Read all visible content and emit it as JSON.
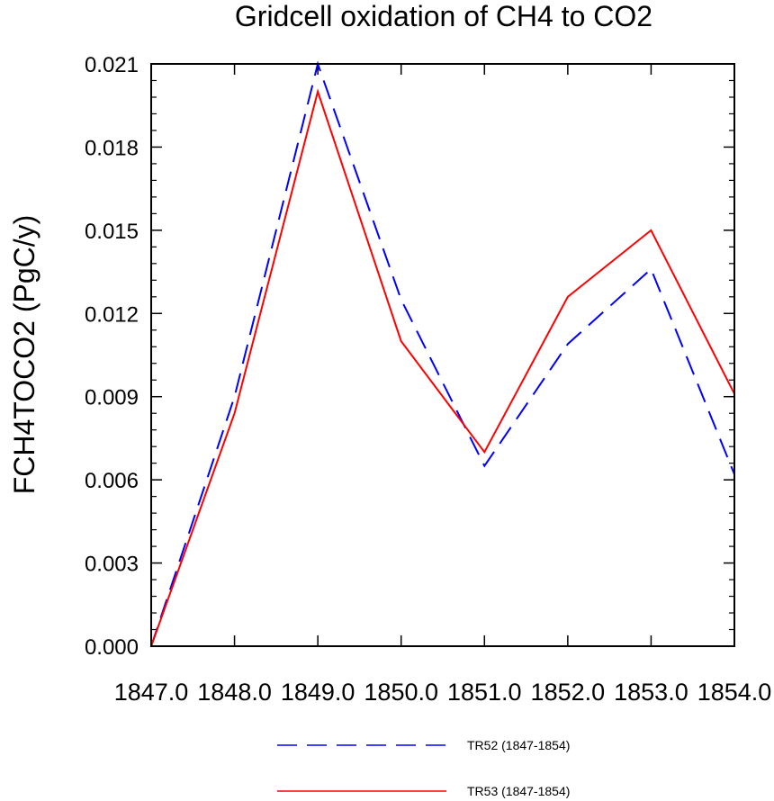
{
  "chart_data": {
    "type": "line",
    "title": "Gridcell oxidation of CH4 to CO2",
    "xlabel": "",
    "ylabel": "FCH4TOCO2  (PgC/y)",
    "x": [
      1847.0,
      1848.0,
      1849.0,
      1850.0,
      1851.0,
      1852.0,
      1853.0,
      1854.0
    ],
    "x_tick_labels": [
      "1847.0",
      "1848.0",
      "1849.0",
      "1850.0",
      "1851.0",
      "1852.0",
      "1853.0",
      "1854.0"
    ],
    "y_tick_labels": [
      "0.000",
      "0.003",
      "0.006",
      "0.009",
      "0.012",
      "0.015",
      "0.018",
      "0.021"
    ],
    "xlim": [
      1847.0,
      1854.0
    ],
    "ylim": [
      0.0,
      0.021
    ],
    "grid": false,
    "legend_position": "bottom",
    "series": [
      {
        "name": "TR52 (1847-1854)",
        "color": "#0000ff",
        "dash": "dashed",
        "values": [
          0.0,
          0.009,
          0.021,
          0.0125,
          0.0065,
          0.0109,
          0.0136,
          0.0062
        ]
      },
      {
        "name": "TR53 (1847-1854)",
        "color": "#ff0000",
        "dash": "solid",
        "values": [
          0.0,
          0.0084,
          0.02,
          0.011,
          0.007,
          0.0126,
          0.015,
          0.0091
        ]
      }
    ]
  }
}
